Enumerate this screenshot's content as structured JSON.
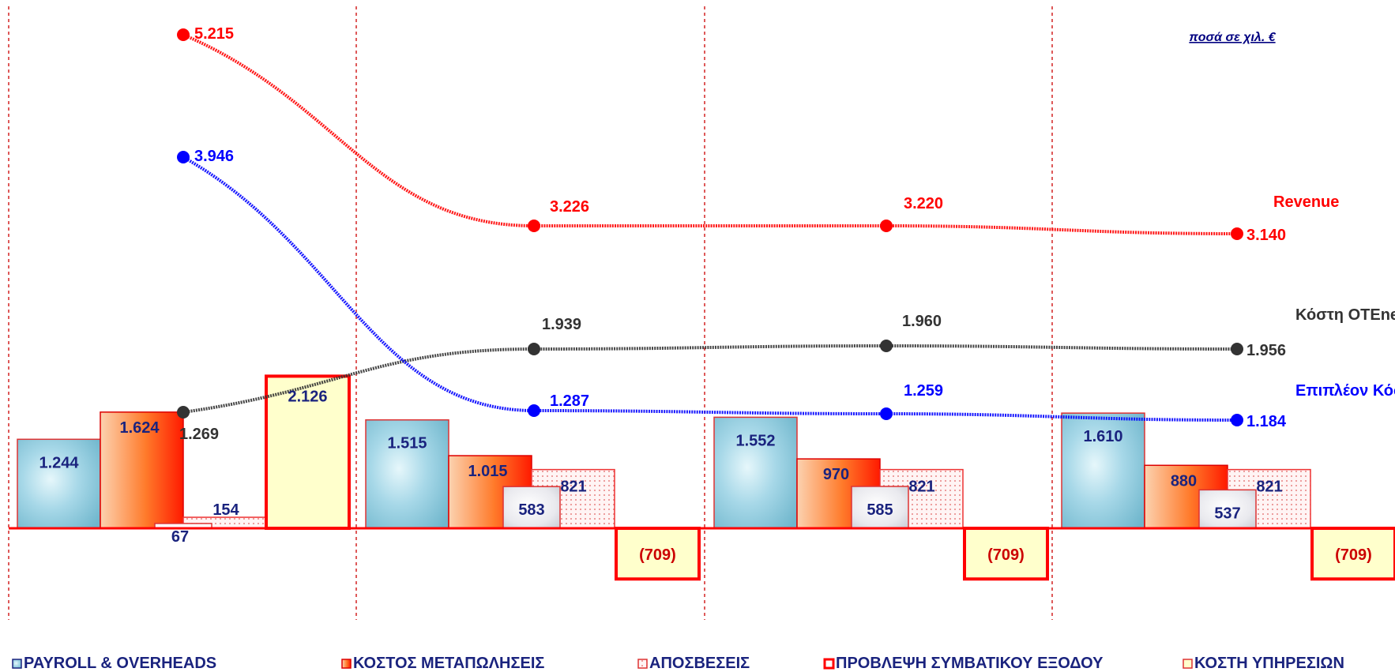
{
  "chart_data": {
    "type": "bar",
    "unit_note": "ποσά σε χιλ. €",
    "groups": 4,
    "bar_series": [
      {
        "name": "PAYROLL & OVERHEADS",
        "values": [
          1244,
          1515,
          1552,
          1610
        ],
        "labels": [
          "1.244",
          "1.515",
          "1.552",
          "1.610"
        ]
      },
      {
        "name": "ΚΟΣΤΟΣ ΜΕΤΑΠΩΛΗΣΕΙΣ",
        "values": [
          1624,
          1015,
          970,
          880
        ],
        "labels": [
          "1.624",
          "1.015",
          "970",
          "880"
        ]
      },
      {
        "name": "ΑΠΟΣΒΕΣΕΙΣ",
        "values": [
          154,
          821,
          821,
          821
        ],
        "labels": [
          "154",
          "821",
          "821",
          "821"
        ]
      },
      {
        "name": "ΠΡΟΒΛΕΨΗ ΣΥΜΒΑΤΙΚΟΥ ΕΞΟΔΟΥ",
        "values": [
          2126,
          -709,
          -709,
          -709
        ],
        "labels": [
          "2.126",
          "(709)",
          "(709)",
          "(709)"
        ]
      },
      {
        "name": "ΚΟΣΤΗ ΥΠΗΡΕΣΙΩΝ",
        "values": [
          67,
          583,
          585,
          537
        ],
        "labels": [
          "67",
          "583",
          "585",
          "537"
        ]
      }
    ],
    "line_series": [
      {
        "name": "Revenue",
        "values": [
          5215,
          3226,
          3220,
          3140
        ],
        "labels": [
          "5.215",
          "3.226",
          "3.220",
          "3.140"
        ],
        "color": "#ff0000"
      },
      {
        "name": "Κόστη OTEnet",
        "values": [
          1269,
          1939,
          1960,
          1956
        ],
        "labels": [
          "1.269",
          "1.939",
          "1.960",
          "1.956"
        ],
        "color": "#333333"
      },
      {
        "name": "Επιπλέον Κόστη",
        "values": [
          3946,
          1287,
          1259,
          1184
        ],
        "labels": [
          "3.946",
          "1.287",
          "1.259",
          "1.184"
        ],
        "color": "#0000ff"
      }
    ],
    "colors": {
      "payroll": "#9fd3e6",
      "cost_resale": "#ff2a00",
      "depreciation": "#ffeaea",
      "provision_fill": "#ffffcc",
      "provision_border": "#ff0000",
      "services": "#e8e8e8",
      "bar_label": "#1a237e",
      "gridline": "#cc0000"
    },
    "grid": "vertical dashed separators between groups",
    "legend_position": "bottom"
  }
}
